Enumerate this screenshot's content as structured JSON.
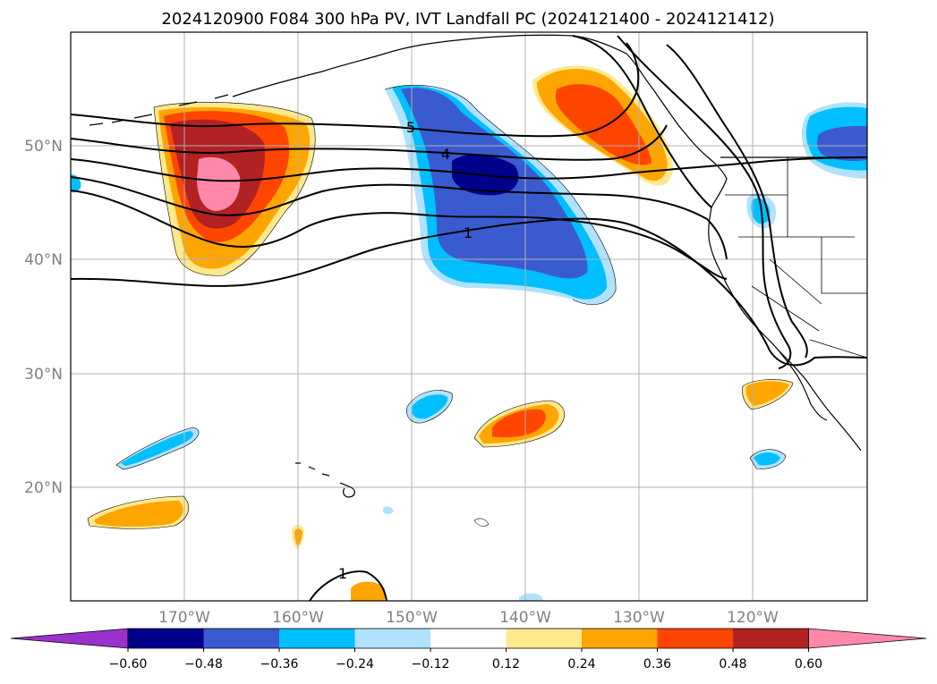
{
  "title": "2024120900 F084 300 hPa PV, IVT Landfall PC (2024121400 - 2024121412)",
  "map": {
    "projection": "PlateCarree",
    "lon_range": [
      -180,
      -110
    ],
    "lat_range": [
      10,
      60
    ],
    "gridlines": true,
    "lat_labels": [
      "50°N",
      "40°N",
      "30°N",
      "20°N"
    ],
    "lon_labels": [
      "170°W",
      "160°W",
      "150°W",
      "140°W",
      "130°W",
      "120°W"
    ]
  },
  "contour_labels": [
    "5",
    "4",
    "1",
    "1"
  ],
  "colorbar": {
    "extend": "both",
    "tick_labels": [
      "−0.60",
      "−0.48",
      "−0.36",
      "−0.24",
      "−0.12",
      "0.12",
      "0.24",
      "0.36",
      "0.48",
      "0.60"
    ],
    "colors": [
      "#9932cc",
      "#00008b",
      "#3a5bcf",
      "#00bfff",
      "#b0e2ff",
      "#ffffff",
      "#ffe98c",
      "#ffa500",
      "#ff4500",
      "#b22222",
      "#ff88aa"
    ]
  }
}
